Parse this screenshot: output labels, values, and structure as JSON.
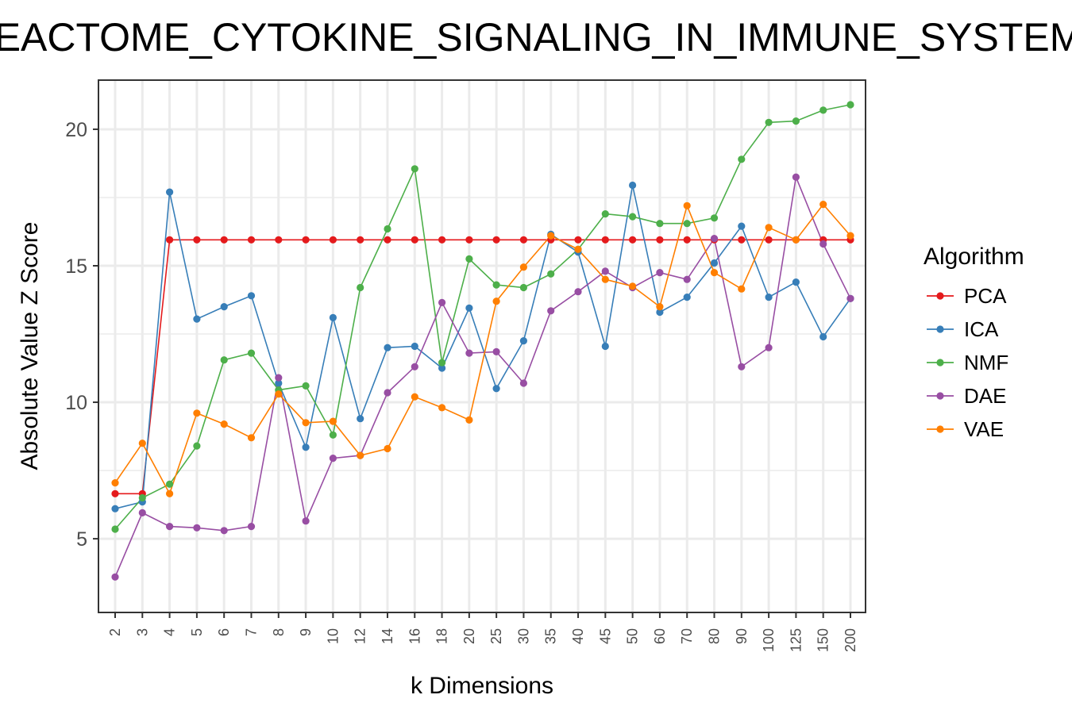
{
  "chart_data": {
    "type": "line",
    "title": "REACTOME_CYTOKINE_SIGNALING_IN_IMMUNE_SYSTEM",
    "xlabel": "k Dimensions",
    "ylabel": "Absolute Value Z Score",
    "categories": [
      "2",
      "3",
      "4",
      "5",
      "6",
      "7",
      "8",
      "9",
      "10",
      "12",
      "14",
      "16",
      "18",
      "20",
      "25",
      "30",
      "35",
      "40",
      "45",
      "50",
      "60",
      "70",
      "80",
      "90",
      "100",
      "125",
      "150",
      "200"
    ],
    "ylim": [
      2.3,
      21.8
    ],
    "yticks": [
      5,
      10,
      15,
      20
    ],
    "grid": true,
    "legend": {
      "title": "Algorithm",
      "position": "right"
    },
    "series": [
      {
        "name": "PCA",
        "color": "#e41a1c",
        "values": [
          6.65,
          6.65,
          15.95,
          15.95,
          15.95,
          15.95,
          15.95,
          15.95,
          15.95,
          15.95,
          15.95,
          15.95,
          15.95,
          15.95,
          15.95,
          15.95,
          15.95,
          15.95,
          15.95,
          15.95,
          15.95,
          15.95,
          15.95,
          15.95,
          15.95,
          15.95,
          15.95,
          15.95
        ]
      },
      {
        "name": "ICA",
        "color": "#377eb8",
        "values": [
          6.1,
          6.35,
          17.7,
          13.05,
          13.5,
          13.9,
          10.7,
          8.35,
          13.1,
          9.4,
          12.0,
          12.05,
          11.25,
          13.45,
          10.5,
          12.25,
          16.15,
          15.5,
          12.05,
          17.95,
          13.3,
          13.85,
          15.1,
          16.45,
          13.85,
          14.4,
          12.4,
          13.8
        ]
      },
      {
        "name": "NMF",
        "color": "#4daf4a",
        "values": [
          5.35,
          6.5,
          7.0,
          8.4,
          11.55,
          11.8,
          10.45,
          10.6,
          8.8,
          14.2,
          16.35,
          18.55,
          11.45,
          15.25,
          14.3,
          14.2,
          14.7,
          15.6,
          16.9,
          16.8,
          16.55,
          16.55,
          16.75,
          18.9,
          20.25,
          20.3,
          20.7,
          20.9
        ]
      },
      {
        "name": "DAE",
        "color": "#984ea3",
        "values": [
          3.6,
          5.95,
          5.45,
          5.4,
          5.3,
          5.45,
          10.9,
          5.65,
          7.95,
          8.05,
          10.35,
          11.3,
          13.65,
          11.8,
          11.85,
          10.7,
          13.35,
          14.05,
          14.8,
          14.2,
          14.75,
          14.5,
          16.0,
          11.3,
          12.0,
          18.25,
          15.8,
          13.8
        ]
      },
      {
        "name": "VAE",
        "color": "#ff7f00",
        "values": [
          7.05,
          8.5,
          6.65,
          9.6,
          9.2,
          8.7,
          10.3,
          9.25,
          9.3,
          8.05,
          8.3,
          10.2,
          9.8,
          9.35,
          13.7,
          14.95,
          16.1,
          15.6,
          14.5,
          14.25,
          13.5,
          17.2,
          14.75,
          14.15,
          16.4,
          15.95,
          17.25,
          16.1
        ]
      }
    ]
  }
}
